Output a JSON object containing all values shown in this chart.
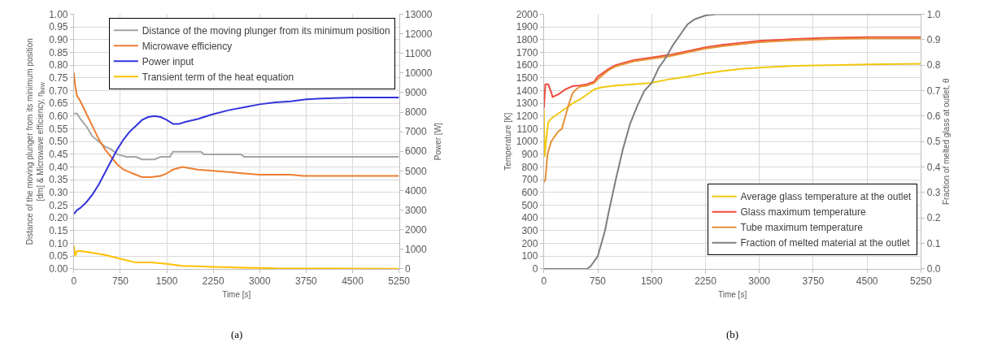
{
  "chart_data": [
    {
      "type": "line",
      "xlabel": "Time [s]",
      "ylabel": "Distance of the moving plunger from its minimum position [dm] & Microwave efficiency, η$_{MW}$",
      "y2label": "Power [W]",
      "xlim": [
        0,
        5250
      ],
      "xticks": [
        0,
        750,
        1500,
        2250,
        3000,
        3750,
        4500,
        5250
      ],
      "ylim": [
        0,
        1
      ],
      "yticks": [
        {
          "value": 0,
          "label": "0.00"
        },
        {
          "value": 0.05,
          "label": "0.05"
        },
        {
          "value": 0.1,
          "label": "0.10"
        },
        {
          "value": 0.15,
          "label": "0.15"
        },
        {
          "value": 0.2,
          "label": "0.20"
        },
        {
          "value": 0.25,
          "label": "0.25"
        },
        {
          "value": 0.3,
          "label": "0.30"
        },
        {
          "value": 0.35,
          "label": "0.35"
        },
        {
          "value": 0.4,
          "label": "0.40"
        },
        {
          "value": 0.45,
          "label": "0.45"
        },
        {
          "value": 0.5,
          "label": "0.50"
        },
        {
          "value": 0.55,
          "label": "0.55"
        },
        {
          "value": 0.6,
          "label": "0.60"
        },
        {
          "value": 0.65,
          "label": "0.65"
        },
        {
          "value": 0.7,
          "label": "0.70"
        },
        {
          "value": 0.75,
          "label": "0.75"
        },
        {
          "value": 0.8,
          "label": "0.80"
        },
        {
          "value": 0.85,
          "label": "0.85"
        },
        {
          "value": 0.9,
          "label": "0.90"
        },
        {
          "value": 0.95,
          "label": "0.95"
        },
        {
          "value": 1,
          "label": "1.00"
        }
      ],
      "y2lim": [
        0,
        13000
      ],
      "y2ticks": [
        0,
        1000,
        2000,
        3000,
        4000,
        5000,
        6000,
        7000,
        8000,
        9000,
        10000,
        11000,
        12000,
        13000
      ],
      "grid": true,
      "legend": "top right",
      "marker": "none",
      "line_style": "solid",
      "annotations": [
        "(a)"
      ],
      "series": [
        {
          "name": "Distance of the moving plunger from its minimum position",
          "color": "#a5a5a5",
          "x": [
            0,
            50,
            100,
            200,
            300,
            400,
            500,
            600,
            700,
            850,
            1000,
            1100,
            1300,
            1400,
            1550,
            1600,
            2050,
            2100,
            2700,
            2750,
            5250
          ],
          "values": [
            0.61,
            0.61,
            0.59,
            0.56,
            0.52,
            0.5,
            0.48,
            0.47,
            0.45,
            0.44,
            0.44,
            0.43,
            0.43,
            0.44,
            0.44,
            0.46,
            0.46,
            0.45,
            0.45,
            0.44,
            0.44
          ]
        },
        {
          "name": "Microwave efficiency",
          "color": "#ed7d31",
          "x": [
            0,
            20,
            50,
            100,
            200,
            300,
            400,
            500,
            600,
            700,
            800,
            900,
            1000,
            1100,
            1250,
            1400,
            1500,
            1600,
            1750,
            2000,
            2250,
            2500,
            2750,
            3000,
            3500,
            3700,
            5250
          ],
          "values": [
            0.77,
            0.72,
            0.68,
            0.66,
            0.61,
            0.56,
            0.51,
            0.47,
            0.44,
            0.41,
            0.39,
            0.38,
            0.37,
            0.36,
            0.36,
            0.365,
            0.375,
            0.39,
            0.4,
            0.39,
            0.385,
            0.38,
            0.375,
            0.37,
            0.37,
            0.365,
            0.365
          ]
        },
        {
          "name": "Power input",
          "color": "#3333dd",
          "axis": "y2",
          "x": [
            0,
            50,
            100,
            200,
            300,
            400,
            500,
            600,
            700,
            800,
            900,
            1000,
            1100,
            1200,
            1300,
            1400,
            1500,
            1600,
            1700,
            1800,
            2000,
            2250,
            2500,
            2750,
            3000,
            3250,
            3500,
            3750,
            4000,
            4500,
            5250
          ],
          "values": [
            2800,
            3000,
            3100,
            3400,
            3800,
            4300,
            4900,
            5500,
            6100,
            6600,
            7000,
            7300,
            7600,
            7750,
            7800,
            7750,
            7600,
            7400,
            7400,
            7500,
            7650,
            7900,
            8100,
            8250,
            8400,
            8500,
            8550,
            8650,
            8700,
            8750,
            8750
          ]
        },
        {
          "name": "Transient term of the heat equation",
          "color": "#ffc000",
          "x": [
            0,
            20,
            50,
            100,
            250,
            500,
            750,
            1000,
            1250,
            1500,
            1750,
            2000,
            2250,
            2750,
            3000,
            3250,
            5250
          ],
          "values": [
            0.09,
            0.05,
            0.07,
            0.07,
            0.065,
            0.055,
            0.04,
            0.025,
            0.025,
            0.02,
            0.012,
            0.01,
            0.008,
            0.005,
            0.004,
            0.002,
            0.001
          ]
        }
      ]
    },
    {
      "type": "line",
      "xlabel": "Time [s]",
      "ylabel": "Temperature [K]",
      "y2label": "Fraction of melted glass at outlet, θ",
      "xlim": [
        0,
        5250
      ],
      "xticks": [
        0,
        750,
        1500,
        2250,
        3000,
        3750,
        4500,
        5250
      ],
      "ylim": [
        0,
        2000
      ],
      "yticks": [
        0,
        100,
        200,
        300,
        400,
        500,
        600,
        700,
        800,
        900,
        1000,
        1100,
        1200,
        1300,
        1400,
        1500,
        1600,
        1700,
        1800,
        1900,
        2000
      ],
      "y2lim": [
        0,
        1
      ],
      "y2ticks": [
        {
          "value": 0,
          "label": "0.0"
        },
        0.1,
        0.2,
        0.3,
        0.4,
        0.5,
        0.6,
        0.7,
        0.8,
        0.9,
        {
          "value": 1,
          "label": "1.0"
        }
      ],
      "grid": true,
      "legend": "bottom right",
      "marker": "none",
      "line_style": "solid",
      "annotations": [
        "(b)"
      ],
      "series": [
        {
          "name": "Average glass temperature at the outlet",
          "color": "#f2c811",
          "x": [
            0,
            10,
            30,
            60,
            100,
            200,
            300,
            400,
            500,
            600,
            700,
            800,
            1000,
            1250,
            1500,
            1750,
            2000,
            2250,
            2500,
            2750,
            3000,
            3500,
            4000,
            4500,
            5250
          ],
          "values": [
            1250,
            880,
            1000,
            1150,
            1180,
            1220,
            1260,
            1300,
            1330,
            1370,
            1410,
            1425,
            1440,
            1450,
            1460,
            1490,
            1510,
            1535,
            1555,
            1570,
            1580,
            1595,
            1600,
            1605,
            1610
          ]
        },
        {
          "name": "Glass maximum temperature",
          "color": "#f04a3c",
          "x": [
            0,
            20,
            60,
            100,
            120,
            200,
            300,
            400,
            500,
            600,
            700,
            750,
            900,
            1000,
            1250,
            1500,
            1750,
            2000,
            2250,
            2500,
            2750,
            3000,
            3500,
            4000,
            4500,
            5250
          ],
          "values": [
            1260,
            1450,
            1450,
            1390,
            1350,
            1370,
            1410,
            1435,
            1440,
            1450,
            1470,
            1510,
            1570,
            1600,
            1640,
            1660,
            1680,
            1710,
            1740,
            1760,
            1775,
            1790,
            1805,
            1815,
            1820,
            1820
          ]
        },
        {
          "name": "Tube maximum temperature",
          "color": "#e69138",
          "x": [
            0,
            20,
            50,
            100,
            200,
            250,
            300,
            350,
            400,
            450,
            500,
            600,
            700,
            750,
            900,
            1000,
            1250,
            1500,
            1750,
            2000,
            2250,
            2500,
            2750,
            3000,
            3500,
            4000,
            4500,
            5250
          ],
          "values": [
            680,
            700,
            900,
            1000,
            1080,
            1100,
            1200,
            1300,
            1380,
            1410,
            1430,
            1440,
            1460,
            1490,
            1560,
            1590,
            1630,
            1650,
            1670,
            1700,
            1730,
            1750,
            1765,
            1780,
            1795,
            1805,
            1810,
            1810
          ]
        },
        {
          "name": "Fraction of melted material at the outlet",
          "color": "#7f7f7f",
          "axis": "y2",
          "x": [
            0,
            600,
            650,
            750,
            850,
            900,
            1000,
            1100,
            1200,
            1300,
            1400,
            1500,
            1600,
            1700,
            1800,
            1900,
            2000,
            2100,
            2250,
            2400,
            5250
          ],
          "values": [
            0,
            0,
            0.01,
            0.05,
            0.15,
            0.22,
            0.35,
            0.47,
            0.57,
            0.64,
            0.7,
            0.73,
            0.79,
            0.83,
            0.88,
            0.92,
            0.96,
            0.98,
            0.995,
            1,
            1
          ]
        }
      ]
    }
  ]
}
